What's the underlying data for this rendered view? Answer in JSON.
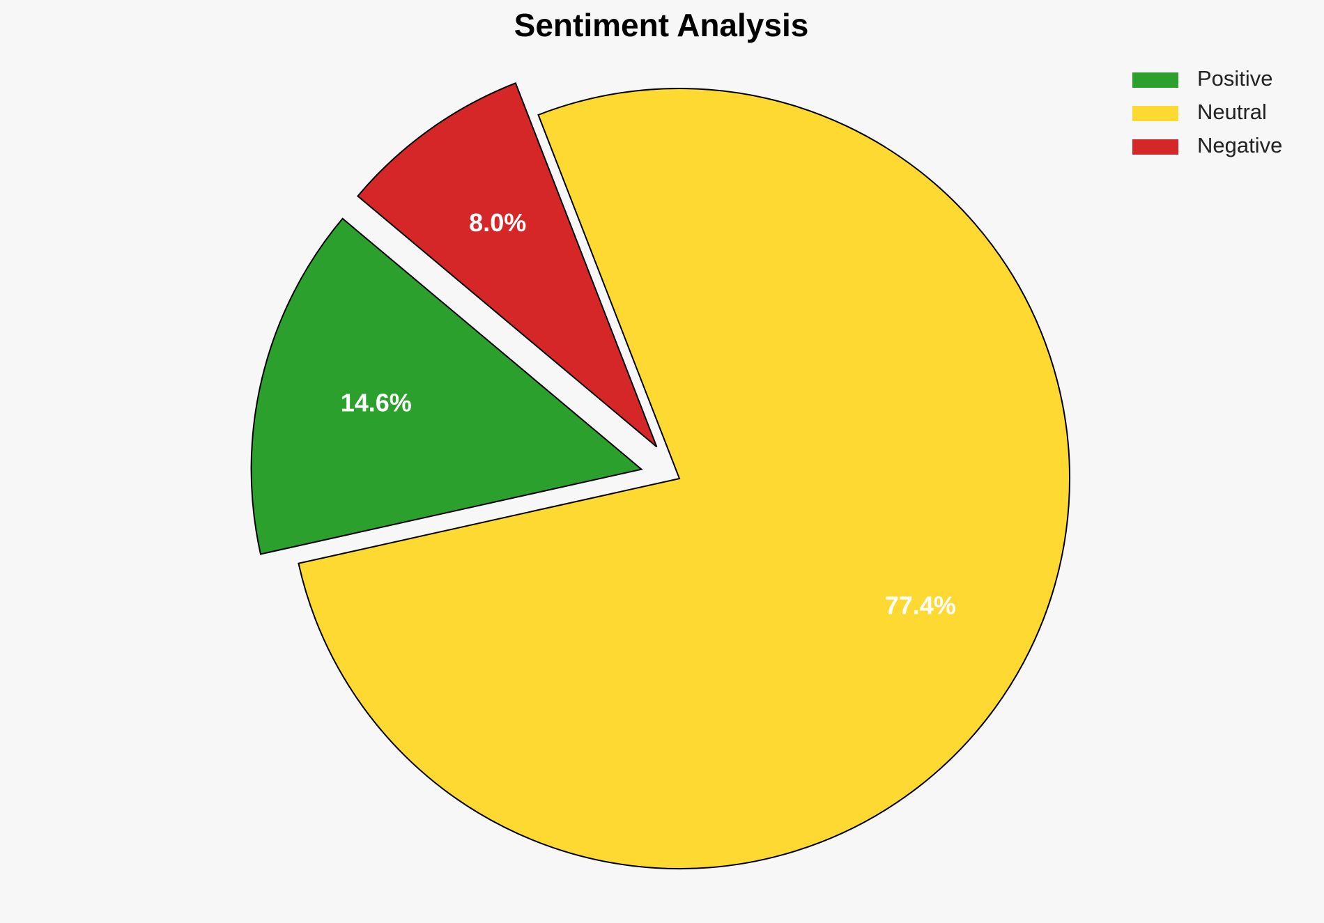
{
  "chart_data": {
    "type": "pie",
    "title": "Sentiment Analysis",
    "categories": [
      "Positive",
      "Neutral",
      "Negative"
    ],
    "values": [
      14.6,
      77.4,
      8.0
    ],
    "value_labels": [
      "14.6%",
      "77.4%",
      "8.0%"
    ],
    "colors": [
      "#2ca02c",
      "#fed931",
      "#d62728"
    ],
    "explode": [
      0.1,
      0,
      0.1
    ],
    "legend": "upper right"
  }
}
